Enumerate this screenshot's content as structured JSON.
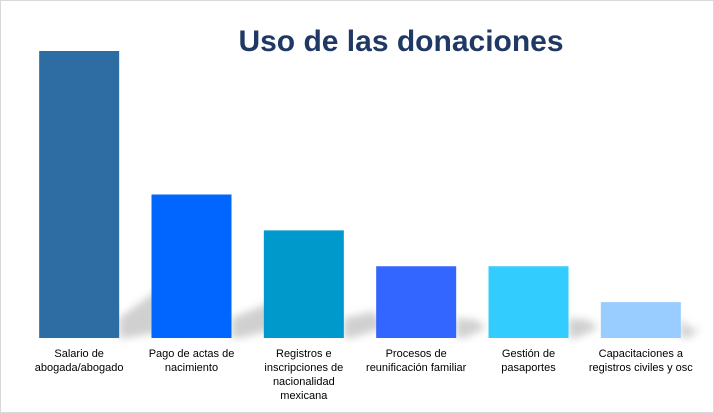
{
  "chart_data": {
    "type": "bar",
    "title": "Uso de las donaciones",
    "xlabel": "",
    "ylabel": "",
    "ylim": [
      0,
      8
    ],
    "grid": false,
    "legend": "none",
    "categories": [
      "Salario de abogada/abogado",
      "Pago de actas de nacimiento",
      "Registros e inscripciones de nacionalidad mexicana",
      "Procesos de reunificación familiar",
      "Gestión de pasaportes",
      "Capacitaciones a registros civiles y osc"
    ],
    "category_lines": [
      [
        "Salario de",
        "abogada/abogado"
      ],
      [
        "Pago de actas de",
        "nacimiento"
      ],
      [
        "Registros e",
        "inscripciones de",
        "nacionalidad",
        "mexicana"
      ],
      [
        "Procesos de",
        "reunificación familiar"
      ],
      [
        "Gestión de",
        "pasaportes"
      ],
      [
        "Capacitaciones a",
        "registros civiles y osc"
      ]
    ],
    "values": [
      8,
      4,
      3,
      2,
      2,
      1
    ],
    "colors": [
      "#2e6ca4",
      "#0066ff",
      "#0099cc",
      "#3366ff",
      "#33ccff",
      "#99ccff"
    ],
    "shadow_color": "#d0d0d0",
    "title_color": "#1f3864"
  }
}
